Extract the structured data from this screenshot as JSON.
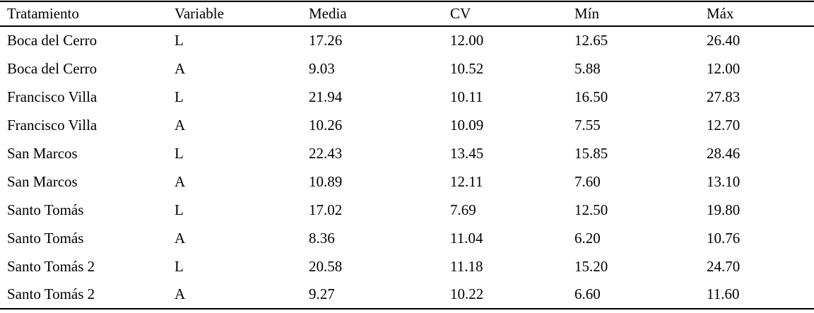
{
  "table": {
    "columns": [
      "Tratamiento",
      "Variable",
      "Media",
      "CV",
      "Mín",
      "Máx"
    ],
    "rows": [
      [
        "Boca del Cerro",
        "L",
        "17.26",
        "12.00",
        "12.65",
        "26.40"
      ],
      [
        "Boca del Cerro",
        "A",
        "9.03",
        "10.52",
        "5.88",
        "12.00"
      ],
      [
        "Francisco Villa",
        "L",
        "21.94",
        "10.11",
        "16.50",
        "27.83"
      ],
      [
        "Francisco Villa",
        "A",
        "10.26",
        "10.09",
        "7.55",
        "12.70"
      ],
      [
        "San Marcos",
        "L",
        "22.43",
        "13.45",
        "15.85",
        "28.46"
      ],
      [
        "San Marcos",
        "A",
        "10.89",
        "12.11",
        "7.60",
        "13.10"
      ],
      [
        "Santo Tomás",
        "L",
        "17.02",
        "7.69",
        "12.50",
        "19.80"
      ],
      [
        "Santo Tomás",
        "A",
        "8.36",
        "11.04",
        "6.20",
        "10.76"
      ],
      [
        "Santo Tomás 2",
        "L",
        "20.58",
        "11.18",
        "15.20",
        "24.70"
      ],
      [
        "Santo Tomás 2",
        "A",
        "9.27",
        "10.22",
        "6.60",
        "11.60"
      ]
    ]
  },
  "chart_data": {
    "type": "table",
    "columns": [
      "Tratamiento",
      "Variable",
      "Media",
      "CV",
      "Mín",
      "Máx"
    ],
    "rows": [
      [
        "Boca del Cerro",
        "L",
        17.26,
        12.0,
        12.65,
        26.4
      ],
      [
        "Boca del Cerro",
        "A",
        9.03,
        10.52,
        5.88,
        12.0
      ],
      [
        "Francisco Villa",
        "L",
        21.94,
        10.11,
        16.5,
        27.83
      ],
      [
        "Francisco Villa",
        "A",
        10.26,
        10.09,
        7.55,
        12.7
      ],
      [
        "San Marcos",
        "L",
        22.43,
        13.45,
        15.85,
        28.46
      ],
      [
        "San Marcos",
        "A",
        10.89,
        12.11,
        7.6,
        13.1
      ],
      [
        "Santo Tomás",
        "L",
        17.02,
        7.69,
        12.5,
        19.8
      ],
      [
        "Santo Tomás",
        "A",
        8.36,
        11.04,
        6.2,
        10.76
      ],
      [
        "Santo Tomás 2",
        "L",
        20.58,
        11.18,
        15.2,
        24.7
      ],
      [
        "Santo Tomás 2",
        "A",
        9.27,
        10.22,
        6.6,
        11.6
      ]
    ]
  },
  "colors": {
    "text": "#000000",
    "background": "#ffffff",
    "rule": "#000000"
  }
}
